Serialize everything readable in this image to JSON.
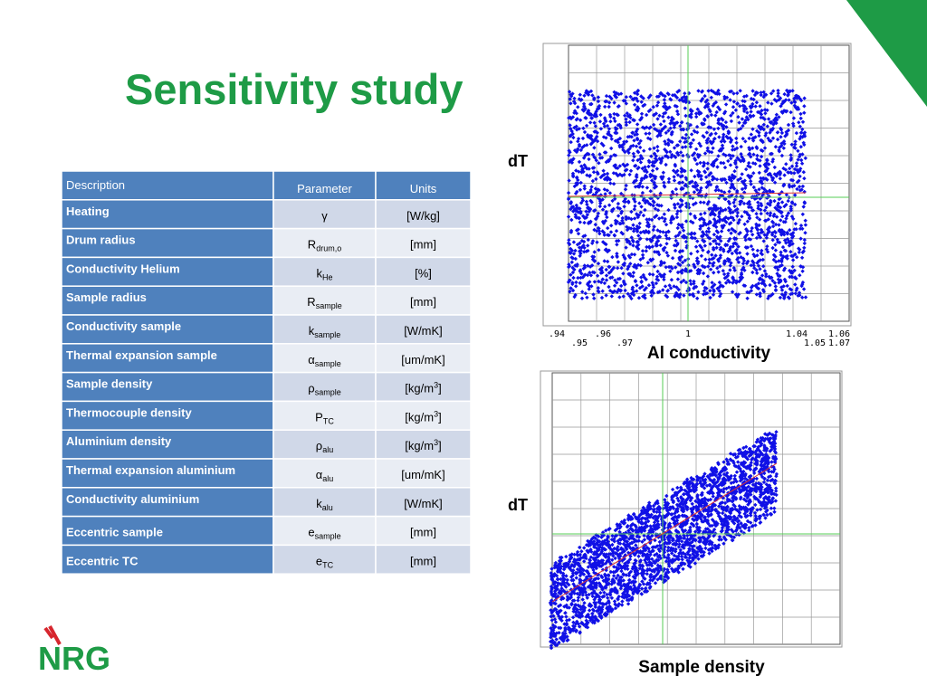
{
  "title": "Sensitivity study",
  "table": {
    "header": [
      "Description",
      "Parameter",
      "Units"
    ],
    "rows": [
      {
        "description": "Heating",
        "symbol": "γ",
        "units": "[W/kg]"
      },
      {
        "description": "Drum radius",
        "symbol": "R",
        "subscript": "drum,o",
        "units": "[mm]"
      },
      {
        "description": "Conductivity Helium",
        "symbol": "k",
        "subscript": "He",
        "units": "[%]"
      },
      {
        "description": "Sample radius",
        "symbol": "R",
        "subscript": "sample",
        "units": "[mm]"
      },
      {
        "description": "Conductivity sample",
        "symbol": "k",
        "subscript": "sample",
        "units": "[W/mK]"
      },
      {
        "description": "Thermal expansion sample",
        "symbol": "α",
        "subscript": "sample",
        "units": "[um/mK]"
      },
      {
        "description": "Sample density",
        "symbol": "ρ",
        "subscript": "sample",
        "units": "[kg/m",
        "units_sup": "3",
        "units_end": "]"
      },
      {
        "description": "Thermocouple density",
        "symbol": "P",
        "subscript": "TC",
        "units": "[kg/m",
        "units_sup": "3",
        "units_end": "]"
      },
      {
        "description": "Aluminium density",
        "symbol": "ρ",
        "subscript": "alu",
        "units": "[kg/m",
        "units_sup": "3",
        "units_end": "]"
      },
      {
        "description": "Thermal expansion aluminium",
        "symbol": "α",
        "subscript": "alu",
        "units": "[um/mK]"
      },
      {
        "description": "Conductivity aluminium",
        "symbol": "k",
        "subscript": "alu",
        "units": "[W/mK]"
      },
      {
        "description": "Eccentric sample",
        "symbol": "e",
        "subscript": "sample",
        "units": "[mm]"
      },
      {
        "description": "Eccentric TC",
        "symbol": "e",
        "subscript": "TC",
        "units": "[mm]"
      }
    ]
  },
  "plots": [
    {
      "y_label": "dT",
      "x_label": "Al conductivity",
      "x_ticks_upper": [
        ".94",
        ".96",
        "1",
        "1.04",
        "1.06"
      ],
      "x_ticks_lower": [
        ".95",
        ".97",
        "1.05",
        "1.07"
      ]
    },
    {
      "y_label": "dT",
      "x_label": "Sample density"
    }
  ],
  "logo": "NRG"
}
